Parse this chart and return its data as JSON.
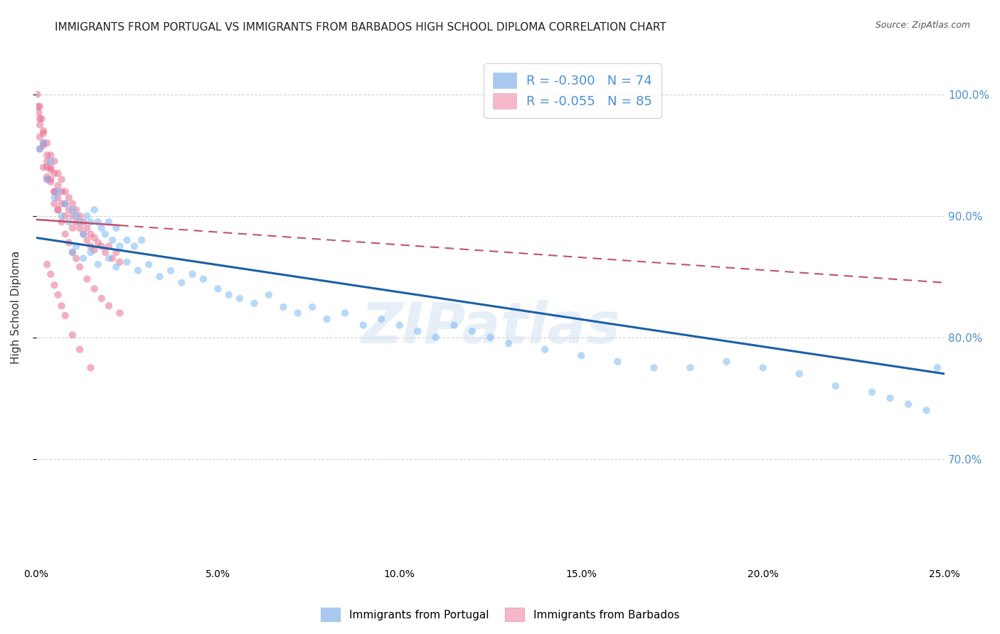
{
  "title": "IMMIGRANTS FROM PORTUGAL VS IMMIGRANTS FROM BARBADOS HIGH SCHOOL DIPLOMA CORRELATION CHART",
  "source": "Source: ZipAtlas.com",
  "ylabel": "High School Diploma",
  "ytick_labels": [
    "70.0%",
    "80.0%",
    "90.0%",
    "100.0%"
  ],
  "ytick_values": [
    0.7,
    0.8,
    0.9,
    1.0
  ],
  "xlim": [
    0.0,
    0.25
  ],
  "ylim": [
    0.615,
    1.035
  ],
  "xtick_positions": [
    0.0,
    0.05,
    0.1,
    0.15,
    0.2,
    0.25
  ],
  "xtick_labels": [
    "0.0%",
    "5.0%",
    "10.0%",
    "15.0%",
    "20.0%",
    "25.0%"
  ],
  "series_portugal": {
    "color": "#7ab8f5",
    "line_color": "#1a5fa8",
    "x": [
      0.001,
      0.002,
      0.003,
      0.004,
      0.005,
      0.006,
      0.007,
      0.008,
      0.009,
      0.01,
      0.011,
      0.012,
      0.013,
      0.014,
      0.015,
      0.016,
      0.017,
      0.018,
      0.019,
      0.02,
      0.021,
      0.022,
      0.023,
      0.025,
      0.027,
      0.029,
      0.01,
      0.011,
      0.013,
      0.015,
      0.017,
      0.02,
      0.022,
      0.025,
      0.028,
      0.031,
      0.034,
      0.037,
      0.04,
      0.043,
      0.046,
      0.05,
      0.053,
      0.056,
      0.06,
      0.064,
      0.068,
      0.072,
      0.076,
      0.08,
      0.085,
      0.09,
      0.095,
      0.1,
      0.105,
      0.11,
      0.115,
      0.12,
      0.125,
      0.13,
      0.14,
      0.15,
      0.16,
      0.17,
      0.18,
      0.19,
      0.2,
      0.21,
      0.22,
      0.23,
      0.235,
      0.24,
      0.245,
      0.248
    ],
    "y": [
      0.955,
      0.96,
      0.93,
      0.945,
      0.915,
      0.92,
      0.9,
      0.91,
      0.895,
      0.905,
      0.9,
      0.895,
      0.885,
      0.9,
      0.895,
      0.905,
      0.895,
      0.89,
      0.885,
      0.895,
      0.88,
      0.89,
      0.875,
      0.88,
      0.875,
      0.88,
      0.87,
      0.875,
      0.865,
      0.87,
      0.86,
      0.865,
      0.858,
      0.862,
      0.855,
      0.86,
      0.85,
      0.855,
      0.845,
      0.852,
      0.848,
      0.84,
      0.835,
      0.832,
      0.828,
      0.835,
      0.825,
      0.82,
      0.825,
      0.815,
      0.82,
      0.81,
      0.815,
      0.81,
      0.805,
      0.8,
      0.81,
      0.805,
      0.8,
      0.795,
      0.79,
      0.785,
      0.78,
      0.775,
      0.775,
      0.78,
      0.775,
      0.77,
      0.76,
      0.755,
      0.75,
      0.745,
      0.74,
      0.775
    ]
  },
  "series_barbados": {
    "color": "#e87090",
    "line_color": "#c05070",
    "x": [
      0.0003,
      0.0005,
      0.0007,
      0.001,
      0.001,
      0.001,
      0.0015,
      0.002,
      0.002,
      0.002,
      0.003,
      0.003,
      0.003,
      0.003,
      0.004,
      0.004,
      0.004,
      0.005,
      0.005,
      0.005,
      0.006,
      0.006,
      0.006,
      0.006,
      0.007,
      0.007,
      0.007,
      0.008,
      0.008,
      0.008,
      0.009,
      0.009,
      0.01,
      0.01,
      0.01,
      0.011,
      0.011,
      0.012,
      0.012,
      0.013,
      0.013,
      0.014,
      0.014,
      0.015,
      0.015,
      0.016,
      0.016,
      0.017,
      0.018,
      0.019,
      0.02,
      0.021,
      0.022,
      0.023,
      0.001,
      0.001,
      0.002,
      0.002,
      0.003,
      0.003,
      0.004,
      0.004,
      0.005,
      0.005,
      0.006,
      0.007,
      0.008,
      0.009,
      0.01,
      0.011,
      0.012,
      0.014,
      0.016,
      0.018,
      0.02,
      0.023,
      0.003,
      0.004,
      0.005,
      0.006,
      0.007,
      0.008,
      0.01,
      0.012,
      0.015
    ],
    "y": [
      1.0,
      0.99,
      0.985,
      0.975,
      0.965,
      0.955,
      0.98,
      0.97,
      0.96,
      0.94,
      0.96,
      0.95,
      0.94,
      0.93,
      0.95,
      0.94,
      0.93,
      0.945,
      0.935,
      0.92,
      0.935,
      0.925,
      0.915,
      0.905,
      0.93,
      0.92,
      0.91,
      0.92,
      0.91,
      0.9,
      0.915,
      0.905,
      0.91,
      0.9,
      0.89,
      0.905,
      0.895,
      0.9,
      0.89,
      0.895,
      0.885,
      0.89,
      0.88,
      0.885,
      0.875,
      0.882,
      0.872,
      0.878,
      0.875,
      0.87,
      0.875,
      0.865,
      0.87,
      0.862,
      0.99,
      0.98,
      0.968,
      0.958,
      0.945,
      0.932,
      0.938,
      0.928,
      0.92,
      0.91,
      0.905,
      0.895,
      0.885,
      0.878,
      0.87,
      0.865,
      0.858,
      0.848,
      0.84,
      0.832,
      0.826,
      0.82,
      0.86,
      0.852,
      0.843,
      0.835,
      0.826,
      0.818,
      0.802,
      0.79,
      0.775
    ]
  },
  "portugal_line": {
    "x0": 0.0,
    "y0": 0.882,
    "x1": 0.25,
    "y1": 0.77
  },
  "barbados_line": {
    "x0": 0.0,
    "y0": 0.897,
    "x1": 0.25,
    "y1": 0.845
  },
  "watermark": "ZIPatlas",
  "background_color": "#ffffff",
  "grid_color": "#cccccc",
  "title_fontsize": 11,
  "axis_label_fontsize": 11,
  "tick_fontsize": 10,
  "scatter_size": 55,
  "scatter_alpha": 0.55
}
